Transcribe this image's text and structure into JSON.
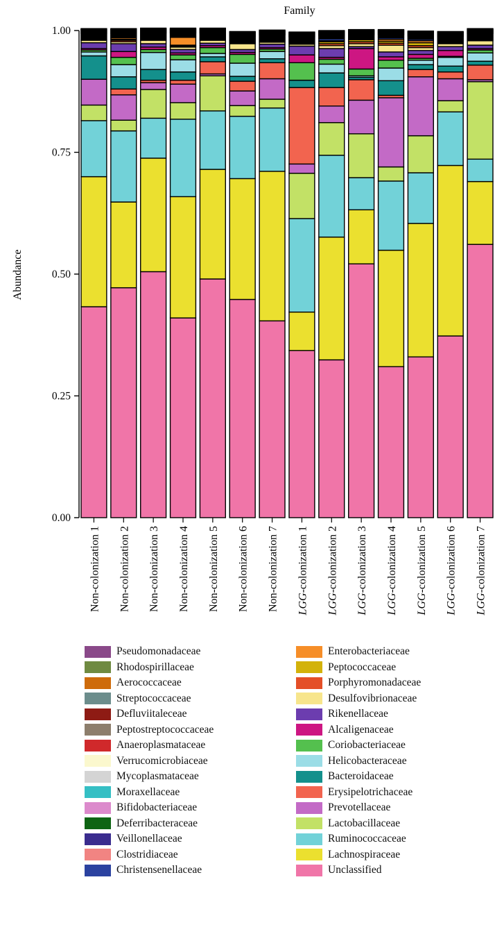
{
  "chart_data": {
    "type": "bar",
    "stacked": true,
    "title": "Family",
    "xlabel": "",
    "ylabel": "Abundance",
    "ylim": [
      0,
      1
    ],
    "yticks": [
      "0.00",
      "0.25",
      "0.50",
      "0.75",
      "1.00"
    ],
    "categories": [
      {
        "prefix": "Non-colonization ",
        "num": "1"
      },
      {
        "prefix": "Non-colonization ",
        "num": "2"
      },
      {
        "prefix": "Non-colonization ",
        "num": "3"
      },
      {
        "prefix": "Non-colonization ",
        "num": "4"
      },
      {
        "prefix": "Non-colonization ",
        "num": "5"
      },
      {
        "prefix": "Non-colonization ",
        "num": "6"
      },
      {
        "prefix": "Non-colonization ",
        "num": "7"
      },
      {
        "italic": "LGG",
        "prefix": "-colonization ",
        "num": "1"
      },
      {
        "italic": "LGG",
        "prefix": "-colonization ",
        "num": "2"
      },
      {
        "italic": "LGG",
        "prefix": "-colonization ",
        "num": "3"
      },
      {
        "italic": "LGG",
        "prefix": "-colonization ",
        "num": "4"
      },
      {
        "italic": "LGG",
        "prefix": "-colonization ",
        "num": "5"
      },
      {
        "italic": "LGG",
        "prefix": "-colonization ",
        "num": "6"
      },
      {
        "italic": "LGG",
        "prefix": "-colonization ",
        "num": "7"
      }
    ],
    "series": [
      {
        "name": "Unclassified",
        "color": "#F075A8",
        "values": [
          0.433,
          0.472,
          0.505,
          0.41,
          0.49,
          0.448,
          0.404,
          0.343,
          0.324,
          0.521,
          0.31,
          0.33,
          0.373,
          0.561
        ]
      },
      {
        "name": "Lachnospiraceae",
        "color": "#EBE02F",
        "values": [
          0.267,
          0.176,
          0.233,
          0.249,
          0.225,
          0.248,
          0.307,
          0.079,
          0.252,
          0.111,
          0.239,
          0.274,
          0.35,
          0.129
        ]
      },
      {
        "name": "Ruminococcaceae",
        "color": "#72D2D8",
        "values": [
          0.115,
          0.146,
          0.082,
          0.159,
          0.12,
          0.128,
          0.13,
          0.192,
          0.168,
          0.066,
          0.142,
          0.104,
          0.11,
          0.046
        ]
      },
      {
        "name": "Lactobacillaceae",
        "color": "#C2E166",
        "values": [
          0.032,
          0.022,
          0.059,
          0.034,
          0.072,
          0.022,
          0.018,
          0.093,
          0.067,
          0.09,
          0.029,
          0.076,
          0.023,
          0.159
        ]
      },
      {
        "name": "Prevotellaceae",
        "color": "#C36AC6",
        "values": [
          0.053,
          0.052,
          0.014,
          0.038,
          0.004,
          0.03,
          0.042,
          0.019,
          0.034,
          0.069,
          0.142,
          0.121,
          0.045,
          0.004
        ]
      },
      {
        "name": "Erysipelotrichaceae",
        "color": "#F2644F",
        "values": [
          0.0,
          0.012,
          0.005,
          0.008,
          0.025,
          0.02,
          0.033,
          0.157,
          0.038,
          0.042,
          0.005,
          0.015,
          0.014,
          0.03
        ]
      },
      {
        "name": "Bacteroidaceae",
        "color": "#14908C",
        "values": [
          0.048,
          0.025,
          0.022,
          0.017,
          0.01,
          0.01,
          0.008,
          0.015,
          0.03,
          0.005,
          0.03,
          0.01,
          0.012,
          0.008
        ]
      },
      {
        "name": "Helicobacteraceae",
        "color": "#9BDDE6",
        "values": [
          0.008,
          0.025,
          0.035,
          0.025,
          0.007,
          0.027,
          0.015,
          0.0,
          0.018,
          0.003,
          0.026,
          0.009,
          0.018,
          0.017
        ]
      },
      {
        "name": "Coriobacteriaceae",
        "color": "#54C04E",
        "values": [
          0.004,
          0.015,
          0.006,
          0.01,
          0.012,
          0.018,
          0.005,
          0.036,
          0.01,
          0.014,
          0.016,
          0.004,
          0.002,
          0.006
        ]
      },
      {
        "name": "Alcaligenaceae",
        "color": "#CD1682",
        "values": [
          0.003,
          0.012,
          0.005,
          0.004,
          0.004,
          0.004,
          0.003,
          0.016,
          0.004,
          0.042,
          0.007,
          0.008,
          0.012,
          0.003
        ]
      },
      {
        "name": "Rikenellaceae",
        "color": "#6C3DAF",
        "values": [
          0.012,
          0.016,
          0.007,
          0.007,
          0.005,
          0.006,
          0.007,
          0.018,
          0.018,
          0.004,
          0.01,
          0.008,
          0.008,
          0.007
        ]
      },
      {
        "name": "Desulfovibrionaceae",
        "color": "#F7E58C",
        "values": [
          0.005,
          0.004,
          0.007,
          0.005,
          0.006,
          0.012,
          0.004,
          0.004,
          0.006,
          0.006,
          0.014,
          0.006,
          0.006,
          0.009
        ]
      },
      {
        "name": "Porphyromonadaceae",
        "color": "#E44F27",
        "values": [
          0.001,
          0.003,
          0.002,
          0.002,
          0.002,
          0.002,
          0.002,
          0.002,
          0.004,
          0.004,
          0.004,
          0.004,
          0.002,
          0.002
        ]
      },
      {
        "name": "Peptococcaceae",
        "color": "#D3B20A",
        "values": [
          0.002,
          0.002,
          0.002,
          0.002,
          0.002,
          0.002,
          0.002,
          0.002,
          0.004,
          0.004,
          0.004,
          0.006,
          0.002,
          0.002
        ]
      },
      {
        "name": "Enterobacteriaceae",
        "color": "#F68E28",
        "values": [
          0.002,
          0.003,
          0.002,
          0.016,
          0.002,
          0.002,
          0.002,
          0.002,
          0.002,
          0.002,
          0.004,
          0.004,
          0.002,
          0.002
        ]
      },
      {
        "name": "Christensenellaceae",
        "color": "#2B42A0",
        "values": [
          0.002,
          0.002,
          0.002,
          0.002,
          0.002,
          0.002,
          0.002,
          0.002,
          0.004,
          0.002,
          0.003,
          0.003,
          0.002,
          0.002
        ]
      },
      {
        "name": "Clostridiaceae",
        "color": "#F18482",
        "values": [
          0.002,
          0.002,
          0.002,
          0.002,
          0.002,
          0.002,
          0.002,
          0.002,
          0.002,
          0.002,
          0.002,
          0.002,
          0.002,
          0.002
        ]
      },
      {
        "name": "Veillonellaceae",
        "color": "#3A2C8E",
        "values": [
          0.002,
          0.002,
          0.002,
          0.002,
          0.002,
          0.002,
          0.002,
          0.002,
          0.002,
          0.002,
          0.002,
          0.002,
          0.002,
          0.002
        ]
      },
      {
        "name": "Deferribacteraceae",
        "color": "#0E6413",
        "values": [
          0.002,
          0.002,
          0.002,
          0.002,
          0.002,
          0.002,
          0.002,
          0.002,
          0.002,
          0.002,
          0.002,
          0.002,
          0.002,
          0.002
        ]
      },
      {
        "name": "Bifidobacteriaceae",
        "color": "#DC8ACC",
        "values": [
          0.001,
          0.001,
          0.001,
          0.001,
          0.001,
          0.001,
          0.001,
          0.001,
          0.001,
          0.001,
          0.001,
          0.001,
          0.001,
          0.001
        ]
      },
      {
        "name": "Moraxellaceae",
        "color": "#35BFC4",
        "values": [
          0.001,
          0.001,
          0.001,
          0.001,
          0.001,
          0.001,
          0.001,
          0.001,
          0.001,
          0.001,
          0.001,
          0.001,
          0.001,
          0.001
        ]
      },
      {
        "name": "Mycoplasmataceae",
        "color": "#D4D4D4",
        "values": [
          0.001,
          0.001,
          0.001,
          0.001,
          0.001,
          0.001,
          0.001,
          0.001,
          0.001,
          0.001,
          0.001,
          0.001,
          0.001,
          0.001
        ]
      },
      {
        "name": "Verrucomicrobiaceae",
        "color": "#FBF8CE",
        "values": [
          0.001,
          0.001,
          0.001,
          0.001,
          0.001,
          0.001,
          0.001,
          0.001,
          0.001,
          0.001,
          0.001,
          0.001,
          0.001,
          0.001
        ]
      },
      {
        "name": "Anaeroplasmataceae",
        "color": "#D0292B",
        "values": [
          0.001,
          0.001,
          0.001,
          0.001,
          0.001,
          0.001,
          0.001,
          0.001,
          0.001,
          0.001,
          0.001,
          0.001,
          0.001,
          0.001
        ]
      },
      {
        "name": "Peptostreptococcaceae",
        "color": "#8D7E6C",
        "values": [
          0.001,
          0.001,
          0.001,
          0.001,
          0.001,
          0.001,
          0.001,
          0.001,
          0.001,
          0.001,
          0.001,
          0.001,
          0.001,
          0.001
        ]
      },
      {
        "name": "Defluviitaleceae",
        "color": "#8E1B14",
        "values": [
          0.001,
          0.001,
          0.001,
          0.001,
          0.001,
          0.001,
          0.001,
          0.001,
          0.001,
          0.001,
          0.001,
          0.001,
          0.001,
          0.001
        ]
      },
      {
        "name": "Streptococcaceae",
        "color": "#6C8D8C",
        "values": [
          0.001,
          0.001,
          0.001,
          0.001,
          0.001,
          0.001,
          0.001,
          0.001,
          0.001,
          0.001,
          0.001,
          0.001,
          0.001,
          0.001
        ]
      },
      {
        "name": "Aerococcaceae",
        "color": "#CE6B0B",
        "values": [
          0.001,
          0.001,
          0.001,
          0.001,
          0.001,
          0.001,
          0.001,
          0.001,
          0.001,
          0.001,
          0.001,
          0.001,
          0.001,
          0.001
        ]
      },
      {
        "name": "Rhodospirillaceae",
        "color": "#6F8A41",
        "values": [
          0.001,
          0.001,
          0.001,
          0.001,
          0.001,
          0.001,
          0.001,
          0.001,
          0.001,
          0.001,
          0.001,
          0.001,
          0.001,
          0.001
        ]
      },
      {
        "name": "Pseudomonadaceae",
        "color": "#8A4989",
        "values": [
          0.001,
          0.001,
          0.001,
          0.001,
          0.001,
          0.001,
          0.001,
          0.001,
          0.001,
          0.001,
          0.001,
          0.001,
          0.001,
          0.001
        ]
      }
    ],
    "legend": {
      "left": [
        "Pseudomonadaceae",
        "Rhodospirillaceae",
        "Aerococcaceae",
        "Streptococcaceae",
        "Defluviitaleceae",
        "Peptostreptococcaceae",
        "Anaeroplasmataceae",
        "Verrucomicrobiaceae",
        "Mycoplasmataceae",
        "Moraxellaceae",
        "Bifidobacteriaceae",
        "Deferribacteraceae",
        "Veillonellaceae",
        "Clostridiaceae",
        "Christensenellaceae"
      ],
      "right": [
        "Enterobacteriaceae",
        "Peptococcaceae",
        "Porphyromonadaceae",
        "Desulfovibrionaceae",
        "Rikenellaceae",
        "Alcaligenaceae",
        "Coriobacteriaceae",
        "Helicobacteraceae",
        "Bacteroidaceae",
        "Erysipelotrichaceae",
        "Prevotellaceae",
        "Lactobacillaceae",
        "Ruminococcaceae",
        "Lachnospiraceae",
        "Unclassified"
      ]
    },
    "legend_position": "bottom",
    "grid": false
  }
}
